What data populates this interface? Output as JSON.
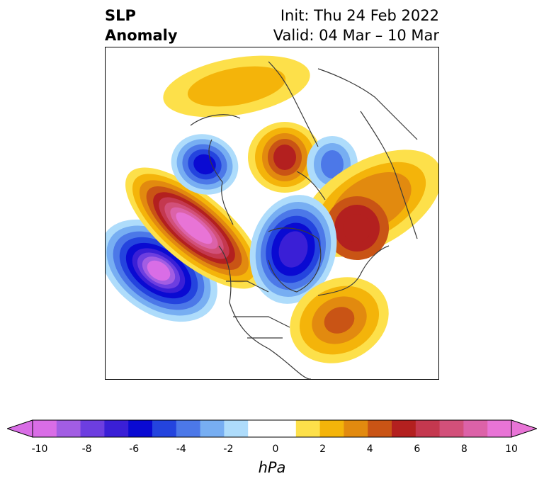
{
  "title": {
    "left_line1": "SLP",
    "left_line2": "Anomaly",
    "init": "Init: Thu 24 Feb 2022",
    "valid": "Valid: 04 Mar – 10 Mar"
  },
  "colorbar": {
    "unit": "hPa",
    "tick_labels": [
      "-10",
      "-8",
      "-6",
      "-4",
      "-2",
      "0",
      "2",
      "4",
      "6",
      "8",
      "10"
    ],
    "range": [
      -10,
      10
    ],
    "bin_width": 1.2,
    "extend": "both",
    "colors": [
      "#d96de6",
      "#a25de3",
      "#6d3ee0",
      "#3a1fd6",
      "#0a0ad2",
      "#2444de",
      "#4c78e8",
      "#77aef2",
      "#aedcfb",
      "#ffffff",
      "#ffffff",
      "#fde04a",
      "#f4b40a",
      "#e28a0f",
      "#c95415",
      "#b3201f",
      "#c4384f",
      "#d2507a",
      "#dc62a8",
      "#e874d6"
    ]
  },
  "map": {
    "projection": "north polar stereographic",
    "features": [
      {
        "kind": "negative anomaly",
        "name": "North Pacific low",
        "peak": -10
      },
      {
        "kind": "positive anomaly",
        "name": "Alaska / Bering high",
        "peak": 10
      },
      {
        "kind": "negative anomaly",
        "name": "Canadian Arctic / Hudson Bay low",
        "peak": -7
      },
      {
        "kind": "negative anomaly",
        "name": "East Siberian low",
        "peak": -7
      },
      {
        "kind": "positive anomaly",
        "name": "Kara Sea high",
        "peak": 6
      },
      {
        "kind": "negative anomaly",
        "name": "Arctic Ocean low",
        "peak": -5
      },
      {
        "kind": "positive anomaly",
        "name": "Scandinavia / Europe high",
        "peak": 6
      },
      {
        "kind": "positive anomaly",
        "name": "North Atlantic high",
        "peak": 5
      },
      {
        "kind": "positive anomaly",
        "name": "Central Asia high",
        "peak": 4
      }
    ]
  }
}
